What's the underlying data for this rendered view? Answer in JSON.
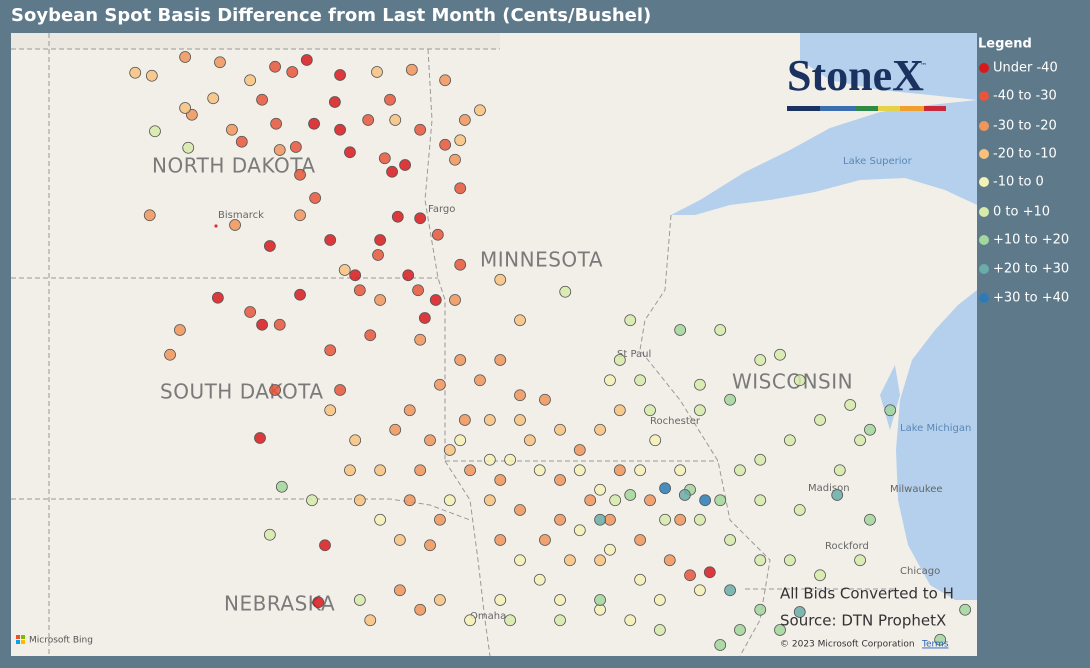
{
  "title": "Soybean Spot Basis Difference from Last Month (Cents/Bushel)",
  "legend": {
    "title": "Legend",
    "items": [
      {
        "label": "Under -40",
        "color": "#d7191c"
      },
      {
        "label": "-40 to -30",
        "color": "#e8553a"
      },
      {
        "label": "-30 to -20",
        "color": "#f0955b"
      },
      {
        "label": "-20 to -10",
        "color": "#f8c27e"
      },
      {
        "label": "-10 to 0",
        "color": "#f4f1b6"
      },
      {
        "label": "0 to +10",
        "color": "#d6ebaa"
      },
      {
        "label": "+10 to +20",
        "color": "#a2d69c"
      },
      {
        "label": "+20 to +30",
        "color": "#6aaca8"
      },
      {
        "label": "+30 to +40",
        "color": "#2c7bb6"
      }
    ]
  },
  "map": {
    "states": [
      "NORTH DAKOTA",
      "MINNESOTA",
      "SOUTH DAKOTA",
      "WISCONSIN",
      "NEBRASKA"
    ],
    "cities": [
      "Bismarck",
      "Fargo",
      "St Paul",
      "Rochester",
      "Madison",
      "Milwaukee",
      "Rockford",
      "Chicago",
      "Omaha"
    ],
    "water": [
      "Lake Superior",
      "Lake Michigan"
    ],
    "points": [
      [
        -99.1,
        48.85,
        0
      ],
      [
        -98.46,
        48.65,
        0
      ],
      [
        -98.56,
        48.29,
        0
      ],
      [
        -98.96,
        48.0,
        0
      ],
      [
        -98.46,
        47.92,
        0
      ],
      [
        -98.27,
        47.62,
        0
      ],
      [
        -97.46,
        47.36,
        0
      ],
      [
        -97.21,
        47.45,
        0
      ],
      [
        -97.35,
        46.76,
        0
      ],
      [
        -96.92,
        46.74,
        0
      ],
      [
        -97.69,
        46.45,
        0
      ],
      [
        -98.17,
        45.98,
        0
      ],
      [
        -96.62,
        45.65,
        0
      ],
      [
        -97.15,
        45.98,
        0
      ],
      [
        -96.83,
        45.41,
        0
      ],
      [
        -100.81,
        45.68,
        0
      ],
      [
        -99.96,
        45.32,
        0
      ],
      [
        -99.23,
        45.72,
        0
      ],
      [
        -98.75,
        42.38,
        0
      ],
      [
        -100.0,
        43.81,
        0
      ],
      [
        -91.35,
        42.02,
        0
      ],
      [
        -98.88,
        41.62,
        0
      ],
      [
        -99.81,
        46.37,
        0
      ],
      [
        -98.65,
        46.45,
        0
      ],
      [
        -99.71,
        48.76,
        1
      ],
      [
        -99.38,
        48.69,
        1
      ],
      [
        -99.96,
        48.32,
        1
      ],
      [
        -99.69,
        48.0,
        1
      ],
      [
        -99.31,
        47.69,
        1
      ],
      [
        -100.35,
        47.76,
        1
      ],
      [
        -97.92,
        48.05,
        1
      ],
      [
        -97.5,
        48.32,
        1
      ],
      [
        -96.92,
        47.92,
        1
      ],
      [
        -97.6,
        47.54,
        1
      ],
      [
        -99.23,
        47.32,
        1
      ],
      [
        -98.94,
        47.01,
        1
      ],
      [
        -97.73,
        46.25,
        1
      ],
      [
        -98.08,
        45.78,
        1
      ],
      [
        -98.65,
        44.98,
        1
      ],
      [
        -97.88,
        45.18,
        1
      ],
      [
        -100.19,
        45.49,
        1
      ],
      [
        -99.62,
        45.32,
        1
      ],
      [
        -99.71,
        44.45,
        1
      ],
      [
        -98.46,
        44.45,
        1
      ],
      [
        -96.44,
        47.72,
        1
      ],
      [
        -96.15,
        47.14,
        1
      ],
      [
        -96.58,
        46.52,
        1
      ],
      [
        -96.15,
        46.12,
        1
      ],
      [
        -96.96,
        45.78,
        1
      ],
      [
        -91.73,
        41.98,
        1
      ],
      [
        -101.44,
        48.89,
        2
      ],
      [
        -100.77,
        48.82,
        2
      ],
      [
        -101.31,
        48.12,
        2
      ],
      [
        -100.54,
        47.92,
        2
      ],
      [
        -99.62,
        47.65,
        2
      ],
      [
        -99.23,
        46.78,
        2
      ],
      [
        -97.08,
        48.72,
        2
      ],
      [
        -96.44,
        48.58,
        2
      ],
      [
        -96.06,
        48.05,
        2
      ],
      [
        -96.25,
        47.52,
        2
      ],
      [
        -96.25,
        45.65,
        2
      ],
      [
        -97.69,
        45.65,
        2
      ],
      [
        -96.92,
        45.12,
        2
      ],
      [
        -96.15,
        44.85,
        2
      ],
      [
        -95.77,
        44.58,
        2
      ],
      [
        -95.38,
        44.85,
        2
      ],
      [
        -95.0,
        44.38,
        2
      ],
      [
        -94.52,
        44.32,
        2
      ],
      [
        -96.54,
        44.52,
        2
      ],
      [
        -97.12,
        44.18,
        2
      ],
      [
        -96.06,
        44.05,
        2
      ],
      [
        -96.73,
        43.78,
        2
      ],
      [
        -96.92,
        43.38,
        2
      ],
      [
        -95.96,
        43.38,
        2
      ],
      [
        -95.38,
        43.25,
        2
      ],
      [
        -95.0,
        42.85,
        2
      ],
      [
        -94.23,
        43.25,
        2
      ],
      [
        -93.65,
        42.98,
        2
      ],
      [
        -93.27,
        42.72,
        2
      ],
      [
        -92.69,
        42.45,
        2
      ],
      [
        -93.08,
        43.38,
        2
      ],
      [
        -93.85,
        43.65,
        2
      ],
      [
        -92.5,
        42.98,
        2
      ],
      [
        -91.92,
        42.72,
        2
      ],
      [
        -92.12,
        42.18,
        2
      ],
      [
        -94.23,
        42.72,
        2
      ],
      [
        -94.52,
        42.45,
        2
      ],
      [
        -95.38,
        42.45,
        2
      ],
      [
        -96.54,
        42.72,
        2
      ],
      [
        -97.12,
        42.98,
        2
      ],
      [
        -96.73,
        42.38,
        2
      ],
      [
        -97.31,
        41.78,
        2
      ],
      [
        -96.92,
        41.52,
        2
      ],
      [
        -101.73,
        44.92,
        2
      ],
      [
        -102.12,
        46.78,
        2
      ],
      [
        -101.54,
        45.25,
        2
      ],
      [
        -100.48,
        46.65,
        2
      ],
      [
        -97.4,
        43.92,
        2
      ],
      [
        -102.4,
        48.68,
        3
      ],
      [
        -102.08,
        48.64,
        3
      ],
      [
        -100.9,
        48.34,
        3
      ],
      [
        -101.44,
        48.21,
        3
      ],
      [
        -100.19,
        48.58,
        3
      ],
      [
        -97.75,
        48.69,
        3
      ],
      [
        -95.77,
        48.18,
        3
      ],
      [
        -96.15,
        47.78,
        3
      ],
      [
        -97.4,
        48.05,
        3
      ],
      [
        -95.38,
        45.92,
        3
      ],
      [
        -95.0,
        45.38,
        3
      ],
      [
        -95.58,
        44.05,
        3
      ],
      [
        -95.0,
        44.05,
        3
      ],
      [
        -96.35,
        43.65,
        3
      ],
      [
        -97.69,
        43.38,
        3
      ],
      [
        -98.08,
        42.98,
        3
      ],
      [
        -97.31,
        42.45,
        3
      ],
      [
        -98.27,
        43.38,
        3
      ],
      [
        -98.65,
        44.18,
        3
      ],
      [
        -98.17,
        43.78,
        3
      ],
      [
        -95.58,
        42.98,
        3
      ],
      [
        -94.81,
        43.78,
        3
      ],
      [
        -94.23,
        43.92,
        3
      ],
      [
        -93.46,
        43.92,
        3
      ],
      [
        -93.08,
        44.18,
        3
      ],
      [
        -93.46,
        42.18,
        3
      ],
      [
        -94.04,
        42.18,
        3
      ],
      [
        -96.54,
        41.65,
        3
      ],
      [
        -97.88,
        41.38,
        3
      ],
      [
        -98.37,
        46.05,
        3
      ],
      [
        -96.15,
        43.78,
        4
      ],
      [
        -96.35,
        42.98,
        4
      ],
      [
        -95.58,
        43.52,
        4
      ],
      [
        -94.62,
        43.38,
        4
      ],
      [
        -93.85,
        43.38,
        4
      ],
      [
        -93.46,
        43.12,
        4
      ],
      [
        -92.69,
        43.38,
        4
      ],
      [
        -95.19,
        43.52,
        4
      ],
      [
        -93.85,
        42.58,
        4
      ],
      [
        -93.27,
        42.32,
        4
      ],
      [
        -92.69,
        41.92,
        4
      ],
      [
        -92.31,
        41.65,
        4
      ],
      [
        -95.0,
        42.18,
        4
      ],
      [
        -94.62,
        41.92,
        4
      ],
      [
        -95.38,
        41.65,
        4
      ],
      [
        -95.96,
        41.38,
        4
      ],
      [
        -94.23,
        41.65,
        4
      ],
      [
        -93.46,
        41.52,
        4
      ],
      [
        -92.88,
        41.38,
        4
      ],
      [
        -91.54,
        41.78,
        4
      ],
      [
        -97.69,
        42.72,
        4
      ],
      [
        -93.27,
        44.58,
        4
      ],
      [
        -92.4,
        43.78,
        4
      ],
      [
        -91.92,
        43.38,
        4
      ],
      [
        -102.02,
        47.9,
        5
      ],
      [
        -101.38,
        47.68,
        5
      ],
      [
        -93.08,
        44.85,
        5
      ],
      [
        -92.69,
        44.58,
        5
      ],
      [
        -91.54,
        44.52,
        5
      ],
      [
        -91.54,
        44.18,
        5
      ],
      [
        -90.38,
        44.85,
        5
      ],
      [
        -90.0,
        44.92,
        5
      ],
      [
        -89.62,
        44.58,
        5
      ],
      [
        -88.65,
        44.25,
        5
      ],
      [
        -89.23,
        44.05,
        5
      ],
      [
        -89.81,
        43.78,
        5
      ],
      [
        -90.38,
        43.52,
        5
      ],
      [
        -90.77,
        43.38,
        5
      ],
      [
        -90.38,
        42.98,
        5
      ],
      [
        -89.62,
        42.85,
        5
      ],
      [
        -88.85,
        43.38,
        5
      ],
      [
        -88.46,
        43.78,
        5
      ],
      [
        -91.54,
        42.72,
        5
      ],
      [
        -90.96,
        42.45,
        5
      ],
      [
        -90.38,
        42.18,
        5
      ],
      [
        -89.81,
        42.18,
        5
      ],
      [
        -89.23,
        41.98,
        5
      ],
      [
        -88.46,
        42.18,
        5
      ],
      [
        -92.31,
        41.25,
        5
      ],
      [
        -94.23,
        41.38,
        5
      ],
      [
        -95.19,
        41.38,
        5
      ],
      [
        -99.81,
        42.52,
        5
      ],
      [
        -99.0,
        42.98,
        5
      ],
      [
        -98.08,
        41.65,
        5
      ],
      [
        -91.15,
        45.25,
        5
      ],
      [
        -94.13,
        45.76,
        5
      ],
      [
        -92.88,
        45.38,
        5
      ],
      [
        -92.5,
        44.18,
        5
      ],
      [
        -92.21,
        42.72,
        5
      ],
      [
        -93.17,
        42.98,
        5
      ],
      [
        -99.58,
        43.16,
        6
      ],
      [
        -91.73,
        43.12,
        6
      ],
      [
        -91.15,
        42.98,
        6
      ],
      [
        -90.77,
        41.25,
        6
      ],
      [
        -90.38,
        41.52,
        6
      ],
      [
        -90.0,
        41.25,
        6
      ],
      [
        -91.15,
        41.05,
        6
      ],
      [
        -88.27,
        43.92,
        6
      ],
      [
        -87.88,
        44.18,
        6
      ],
      [
        -91.92,
        45.25,
        6
      ],
      [
        -93.46,
        41.65,
        6
      ],
      [
        -92.88,
        43.05,
        6
      ],
      [
        -90.96,
        44.32,
        6
      ],
      [
        -88.27,
        42.72,
        6
      ],
      [
        -86.44,
        41.52,
        6
      ],
      [
        -86.92,
        41.12,
        6
      ],
      [
        -88.9,
        43.05,
        7
      ],
      [
        -89.62,
        41.49,
        7
      ],
      [
        -93.46,
        42.72,
        7
      ],
      [
        -90.96,
        41.78,
        7
      ],
      [
        -91.83,
        43.05,
        7
      ],
      [
        -92.21,
        43.14,
        8
      ],
      [
        -91.44,
        42.98,
        8
      ]
    ]
  },
  "logo": {
    "text": "StoneX",
    "mark": "™"
  },
  "footnotes": {
    "note": "All Bids Converted to H",
    "source": "Source: DTN ProphetX",
    "copyright": "© 2023 Microsoft Corporation",
    "terms": "Terms",
    "provider": "Microsoft Bing"
  }
}
